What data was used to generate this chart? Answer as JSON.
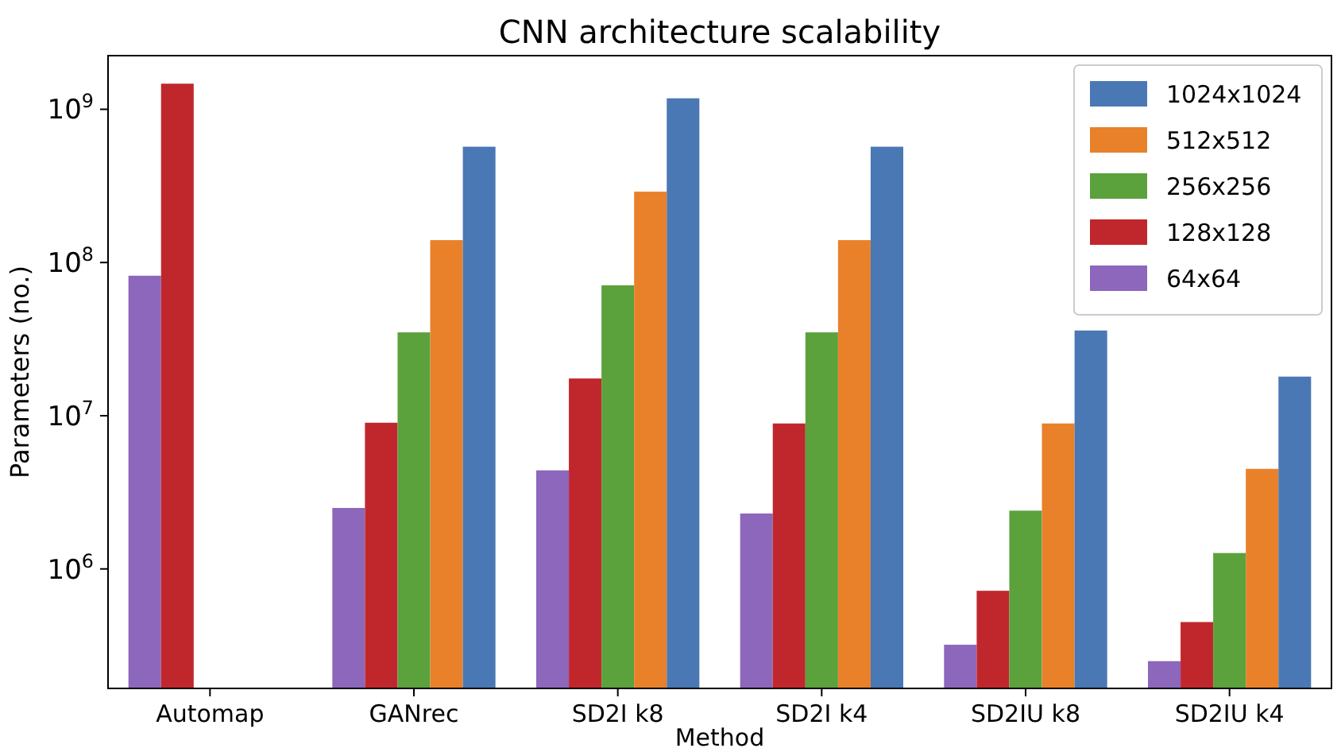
{
  "chart_data": {
    "type": "bar",
    "title": "CNN architecture scalability",
    "xlabel": "Method",
    "ylabel": "Parameters (no.)",
    "categories": [
      "Automap",
      "GANrec",
      "SD2I k8",
      "SD2I k4",
      "SD2IU k8",
      "SD2IU k4"
    ],
    "series": [
      {
        "name": "64x64",
        "color": "#8c67bb",
        "values": [
          82000000,
          2500000,
          4400000,
          2300000,
          320000,
          250000
        ]
      },
      {
        "name": "128x128",
        "color": "#c0272d",
        "values": [
          1470000000,
          9000000,
          17500000,
          8900000,
          720000,
          450000
        ]
      },
      {
        "name": "256x256",
        "color": "#5ba13c",
        "values": [
          null,
          35000000,
          71000000,
          35000000,
          2400000,
          1270000
        ]
      },
      {
        "name": "512x512",
        "color": "#e8812a",
        "values": [
          null,
          140000000,
          290000000,
          140000000,
          8900000,
          4500000
        ]
      },
      {
        "name": "1024x1024",
        "color": "#4a78b4",
        "values": [
          null,
          570000000,
          1180000000,
          570000000,
          36000000,
          18000000
        ]
      }
    ],
    "log": "y",
    "ylim": [
      166000,
      2240000000
    ],
    "yticks": [
      {
        "value": 1000000,
        "label": "10$^{6}$"
      },
      {
        "value": 10000000,
        "label": "10$^{7}$"
      },
      {
        "value": 100000000,
        "label": "10$^{8}$"
      },
      {
        "value": 1000000000,
        "label": "10$^{9}$"
      }
    ],
    "grid": false,
    "legend": "top right"
  }
}
